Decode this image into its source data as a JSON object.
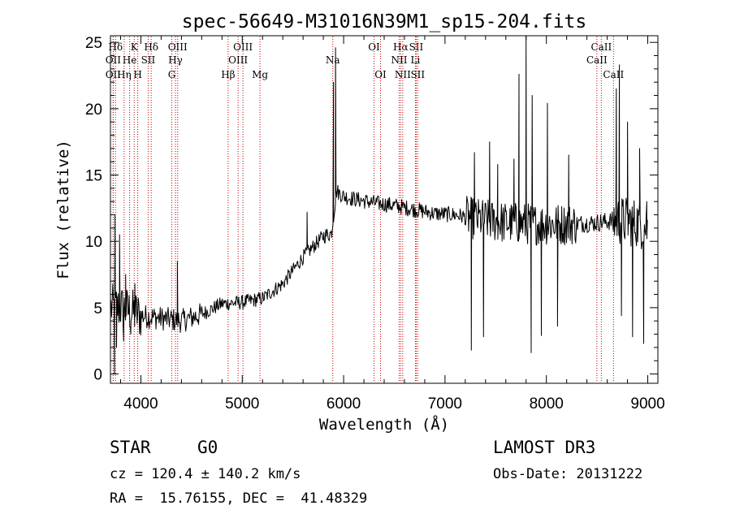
{
  "chart_data": {
    "type": "line",
    "title": "spec-56649-M31016N39M1_sp15-204.fits",
    "xlabel": "Wavelength (Å)",
    "ylabel": "Flux (relative)",
    "xlim": [
      3700,
      9100
    ],
    "ylim": [
      -0.7,
      25.5
    ],
    "xticks": [
      4000,
      5000,
      6000,
      7000,
      8000,
      9000
    ],
    "yticks": [
      0,
      5,
      10,
      15,
      20,
      25
    ],
    "continuum_anchors": {
      "x": [
        3700,
        3800,
        4000,
        4200,
        4400,
        4600,
        4800,
        5000,
        5200,
        5400,
        5600,
        5800,
        5880,
        5930,
        6000,
        6100,
        6300,
        6500,
        6700,
        6900,
        7100,
        7300,
        7600,
        7900,
        8200,
        8500,
        8700,
        8900,
        9000
      ],
      "y": [
        5.0,
        5.0,
        4.4,
        4.2,
        4.0,
        4.5,
        5.3,
        5.4,
        5.7,
        6.8,
        8.8,
        10.4,
        10.6,
        13.8,
        13.4,
        13.2,
        12.9,
        12.7,
        12.4,
        12.1,
        12.0,
        11.7,
        11.4,
        11.3,
        11.3,
        11.4,
        11.6,
        11.4,
        11.0
      ]
    },
    "spikes": [
      {
        "x": 3740,
        "y": 0.0
      },
      {
        "x": 3745,
        "y": 12.0
      },
      {
        "x": 3760,
        "y": 2.0
      },
      {
        "x": 3790,
        "y": 10.5
      },
      {
        "x": 3830,
        "y": 2.5
      },
      {
        "x": 3850,
        "y": 7.5
      },
      {
        "x": 3900,
        "y": 3.0
      },
      {
        "x": 3940,
        "y": 6.8
      },
      {
        "x": 4360,
        "y": 8.5
      },
      {
        "x": 5640,
        "y": 12.2
      },
      {
        "x": 5900,
        "y": 22.0
      },
      {
        "x": 5920,
        "y": 24.6
      },
      {
        "x": 7260,
        "y": 1.8
      },
      {
        "x": 7290,
        "y": 16.7
      },
      {
        "x": 7380,
        "y": 2.8
      },
      {
        "x": 7440,
        "y": 17.5
      },
      {
        "x": 7520,
        "y": 15.8
      },
      {
        "x": 7680,
        "y": 16.2
      },
      {
        "x": 7730,
        "y": 22.6
      },
      {
        "x": 7800,
        "y": 25.5
      },
      {
        "x": 7850,
        "y": 1.6
      },
      {
        "x": 7860,
        "y": 21.0
      },
      {
        "x": 7950,
        "y": 2.9
      },
      {
        "x": 8010,
        "y": 20.4
      },
      {
        "x": 8110,
        "y": 3.6
      },
      {
        "x": 8220,
        "y": 16.5
      },
      {
        "x": 8690,
        "y": 21.5
      },
      {
        "x": 8720,
        "y": 23.3
      },
      {
        "x": 8740,
        "y": 4.4
      },
      {
        "x": 8800,
        "y": 19.0
      },
      {
        "x": 8850,
        "y": 2.8
      },
      {
        "x": 8920,
        "y": 17.0
      },
      {
        "x": 8960,
        "y": 2.3
      },
      {
        "x": 8990,
        "y": 13.0
      }
    ],
    "line_markers": [
      {
        "label": "Hδ",
        "x": 3750,
        "row": 1
      },
      {
        "label": "OII",
        "x": 3727,
        "row": 2
      },
      {
        "label": "OII",
        "x": 3727,
        "row": 3
      },
      {
        "label": "He",
        "x": 3889,
        "row": 2
      },
      {
        "label": "Hη",
        "x": 3835,
        "row": 3
      },
      {
        "label": "K",
        "x": 3934,
        "row": 1
      },
      {
        "label": "SII",
        "x": 4072,
        "row": 2
      },
      {
        "label": "H",
        "x": 3969,
        "row": 3
      },
      {
        "label": "Hδ",
        "x": 4102,
        "row": 1
      },
      {
        "label": "OIII",
        "x": 4363,
        "row": 1
      },
      {
        "label": "Hγ",
        "x": 4341,
        "row": 2
      },
      {
        "label": "G",
        "x": 4305,
        "row": 3
      },
      {
        "label": "Hβ",
        "x": 4861,
        "row": 3
      },
      {
        "label": "OIII",
        "x": 5007,
        "row": 1
      },
      {
        "label": "OIII",
        "x": 4959,
        "row": 2
      },
      {
        "label": "Mg",
        "x": 5175,
        "row": 3
      },
      {
        "label": "Na",
        "x": 5893,
        "row": 2
      },
      {
        "label": "OI",
        "x": 6300,
        "row": 1
      },
      {
        "label": "OI",
        "x": 6364,
        "row": 3
      },
      {
        "label": "Hα",
        "x": 6563,
        "row": 1
      },
      {
        "label": "NII",
        "x": 6548,
        "row": 2
      },
      {
        "label": "NII",
        "x": 6583,
        "row": 3
      },
      {
        "label": "SII",
        "x": 6716,
        "row": 1
      },
      {
        "label": "Li",
        "x": 6708,
        "row": 2
      },
      {
        "label": "SII",
        "x": 6731,
        "row": 3
      },
      {
        "label": "CaII",
        "x": 8542,
        "row": 1
      },
      {
        "label": "CaII",
        "x": 8498,
        "row": 2
      },
      {
        "label": "CaII",
        "x": 8662,
        "row": 3
      }
    ]
  },
  "info": {
    "object_class": "STAR",
    "subclass": "G0",
    "survey": "LAMOST DR3",
    "redshift": "cz = 120.4 ± 140.2 km/s",
    "obs_date": "Obs-Date: 20131222",
    "coords": "RA =  15.76155, DEC =  41.48329"
  },
  "colors": {
    "line_marker": "#c00000",
    "spectrum": "#000000",
    "axes": "#000000"
  }
}
